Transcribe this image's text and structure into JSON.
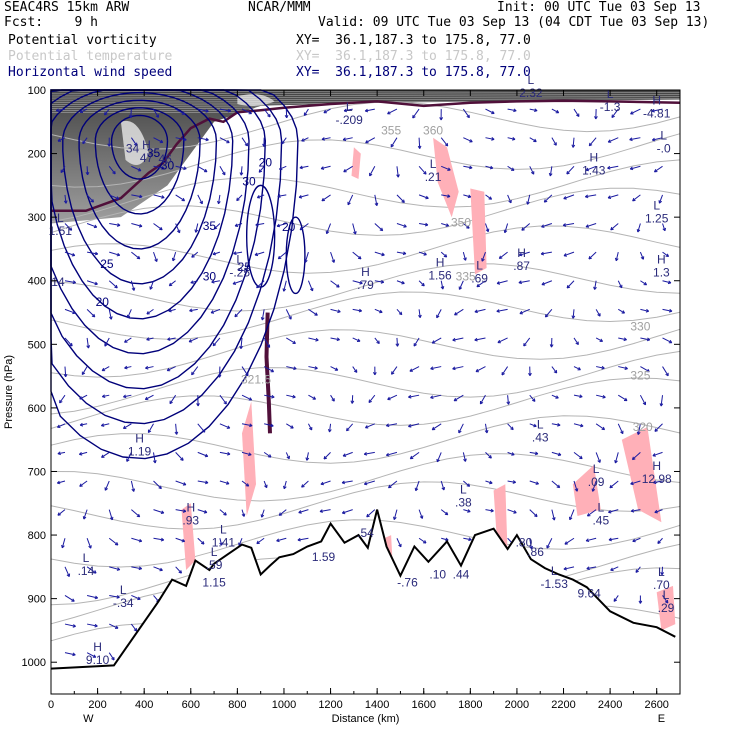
{
  "header": {
    "model": "SEAC4RS 15km ARW",
    "org": "NCAR/MMM",
    "init": "Init: 00 UTC Tue 03 Sep 13",
    "fcst": "Fcst:    9 h",
    "valid": "Valid: 09 UTC Tue 03 Sep 13 (04 CDT Tue 03 Sep 13)",
    "fields": [
      {
        "name": "Potential vorticity",
        "xy": "XY=  36.1,187.3 to 175.8, 77.0",
        "color": "#000000"
      },
      {
        "name": "Potential temperature",
        "xy": "XY=  36.1,187.3 to 175.8, 77.0",
        "color": "#b0b0b0"
      },
      {
        "name": "Horizontal wind speed",
        "xy": "XY=  36.1,187.3 to 175.8, 77.0",
        "color": "#00007a"
      }
    ]
  },
  "chart_data": {
    "type": "cross-section",
    "xlabel": "Distance (km)",
    "ylabel": "Pressure (hPa)",
    "x_ticks": [
      "0",
      "200",
      "400",
      "600",
      "800",
      "1000",
      "1200",
      "1400",
      "1600",
      "1800",
      "2000",
      "2200",
      "2400",
      "2600"
    ],
    "y_ticks": [
      "100",
      "200",
      "300",
      "400",
      "500",
      "600",
      "700",
      "800",
      "900",
      "1000"
    ],
    "xlim": [
      0,
      2700
    ],
    "ylim": [
      1050,
      100
    ],
    "left_end": "W",
    "right_end": "E",
    "colors": {
      "wind_contour": "#00007a",
      "theta_contour": "#b4b4b4",
      "pv_shade": "#ffb0b8",
      "pv_line": "#50103a",
      "terrain": "#000000"
    },
    "terrain": {
      "x": [
        0,
        270,
        460,
        520,
        580,
        620,
        680,
        700,
        760,
        820,
        860,
        900,
        940,
        980,
        1040,
        1100,
        1160,
        1200,
        1260,
        1320,
        1360,
        1400,
        1440,
        1500,
        1560,
        1620,
        1700,
        1760,
        1820,
        1900,
        1960,
        2000,
        2060,
        2120,
        2180,
        2240,
        2300,
        2400,
        2500,
        2600,
        2680
      ],
      "p": [
        1010,
        1005,
        905,
        870,
        880,
        840,
        855,
        845,
        830,
        815,
        820,
        862,
        848,
        835,
        830,
        818,
        810,
        782,
        812,
        800,
        820,
        760,
        818,
        864,
        818,
        842,
        810,
        848,
        800,
        790,
        822,
        800,
        838,
        852,
        862,
        870,
        882,
        920,
        938,
        945,
        960
      ]
    },
    "wind_speed_contours": [
      {
        "value": "20",
        "x": 220,
        "p": 440
      },
      {
        "value": "25",
        "x": 240,
        "p": 380
      },
      {
        "value": "30",
        "x": 680,
        "p": 400
      },
      {
        "value": "35",
        "x": 680,
        "p": 320
      },
      {
        "value": "30",
        "x": 850,
        "p": 250
      },
      {
        "value": "25",
        "x": 830,
        "p": 385
      },
      {
        "value": "20",
        "x": 920,
        "p": 220
      },
      {
        "value": "20",
        "x": 1020,
        "p": 322
      },
      {
        "value": "35",
        "x": 440,
        "p": 205
      },
      {
        "value": "30",
        "x": 500,
        "p": 225
      }
    ],
    "theta_contours": [
      {
        "value": "330",
        "x": 2530,
        "p": 478
      },
      {
        "value": "325",
        "x": 2530,
        "p": 555
      },
      {
        "value": "320",
        "x": 2540,
        "p": 636
      },
      {
        "value": "335",
        "x": 1780,
        "p": 400
      },
      {
        "value": "350",
        "x": 1760,
        "p": 315
      },
      {
        "value": "355",
        "x": 1460,
        "p": 170
      },
      {
        "value": "360",
        "x": 1640,
        "p": 170
      },
      {
        "value": "321.5",
        "x": 880,
        "p": 562
      }
    ],
    "extrema": [
      {
        "kind": "H",
        "value": "47",
        "x": 410,
        "p": 210
      },
      {
        "kind": "",
        "value": "34",
        "x": 350,
        "p": 195
      },
      {
        "kind": "",
        "value": "46",
        "x": 490,
        "p": 212
      },
      {
        "kind": "L",
        "value": "1.51",
        "x": 40,
        "p": 325
      },
      {
        "kind": "",
        "value": "14",
        "x": 30,
        "p": 405
      },
      {
        "kind": "L",
        "value": "-.25",
        "x": 810,
        "p": 390
      },
      {
        "kind": "H",
        "value": "1.19",
        "x": 380,
        "p": 672
      },
      {
        "kind": "H",
        "value": ".93",
        "x": 600,
        "p": 780
      },
      {
        "kind": "L",
        "value": ".14",
        "x": 150,
        "p": 860
      },
      {
        "kind": "L",
        "value": "-.34",
        "x": 310,
        "p": 910
      },
      {
        "kind": "H",
        "value": "9.10",
        "x": 200,
        "p": 1000
      },
      {
        "kind": "L",
        "value": "1.41",
        "x": 740,
        "p": 815
      },
      {
        "kind": "L",
        "value": ".59",
        "x": 700,
        "p": 850
      },
      {
        "kind": "",
        "value": "1.15",
        "x": 700,
        "p": 878
      },
      {
        "kind": "",
        "value": "1.59",
        "x": 1170,
        "p": 838
      },
      {
        "kind": "",
        "value": ".54",
        "x": 1350,
        "p": 800
      },
      {
        "kind": "H",
        "value": ".79",
        "x": 1350,
        "p": 410
      },
      {
        "kind": "H",
        "value": "1.56",
        "x": 1670,
        "p": 395
      },
      {
        "kind": "L",
        "value": ".69",
        "x": 1840,
        "p": 400
      },
      {
        "kind": "H",
        "value": ".87",
        "x": 2020,
        "p": 380
      },
      {
        "kind": "L",
        "value": ".21",
        "x": 1640,
        "p": 240
      },
      {
        "kind": "L",
        "value": "-.209",
        "x": 1280,
        "p": 150
      },
      {
        "kind": "H",
        "value": "1.43",
        "x": 2330,
        "p": 230
      },
      {
        "kind": "L",
        "value": ".43",
        "x": 2100,
        "p": 650
      },
      {
        "kind": "L",
        "value": ".38",
        "x": 1770,
        "p": 752
      },
      {
        "kind": "",
        "value": ".80",
        "x": 2030,
        "p": 815
      },
      {
        "kind": "",
        "value": ".86",
        "x": 2080,
        "p": 830
      },
      {
        "kind": "",
        "value": ".10",
        "x": 1660,
        "p": 865
      },
      {
        "kind": "",
        "value": "-.76",
        "x": 1530,
        "p": 878
      },
      {
        "kind": "",
        "value": ".44",
        "x": 1760,
        "p": 865
      },
      {
        "kind": "L",
        "value": "-1.53",
        "x": 2160,
        "p": 880
      },
      {
        "kind": "L",
        "value": ".09",
        "x": 2340,
        "p": 720
      },
      {
        "kind": "H",
        "value": "12.98",
        "x": 2600,
        "p": 715
      },
      {
        "kind": "L",
        "value": ".45",
        "x": 2360,
        "p": 780
      },
      {
        "kind": "",
        "value": "9.64",
        "x": 2310,
        "p": 895
      },
      {
        "kind": "L",
        "value": ".70",
        "x": 2620,
        "p": 882
      },
      {
        "kind": "L",
        "value": ".29",
        "x": 2640,
        "p": 918
      },
      {
        "kind": "L",
        "value": "2.32",
        "x": 2060,
        "p": 108
      },
      {
        "kind": "H",
        "value": "-4.81",
        "x": 2600,
        "p": 140
      },
      {
        "kind": "L",
        "value": "-1.3",
        "x": 2400,
        "p": 130
      },
      {
        "kind": "L",
        "value": "-.0",
        "x": 2630,
        "p": 195
      },
      {
        "kind": "L",
        "value": "1.25",
        "x": 2600,
        "p": 305
      },
      {
        "kind": "H",
        "value": "1.3",
        "x": 2620,
        "p": 390
      }
    ],
    "pv_shaded_patches": [
      {
        "x": [
          1640,
          1700,
          1750,
          1720,
          1660
        ],
        "p": [
          175,
          190,
          260,
          300,
          245
        ]
      },
      {
        "x": [
          1800,
          1860,
          1870,
          1820
        ],
        "p": [
          255,
          260,
          380,
          390
        ]
      },
      {
        "x": [
          1300,
          1330,
          1320,
          1290
        ],
        "p": [
          190,
          200,
          240,
          235
        ]
      },
      {
        "x": [
          820,
          860,
          880,
          840
        ],
        "p": [
          640,
          590,
          720,
          770
        ]
      },
      {
        "x": [
          560,
          600,
          620,
          580
        ],
        "p": [
          760,
          750,
          840,
          855
        ]
      },
      {
        "x": [
          2240,
          2330,
          2360,
          2260
        ],
        "p": [
          720,
          690,
          760,
          770
        ]
      },
      {
        "x": [
          2450,
          2560,
          2620,
          2520
        ],
        "p": [
          650,
          630,
          780,
          760
        ]
      },
      {
        "x": [
          1400,
          1460,
          1470,
          1420
        ],
        "p": [
          810,
          800,
          870,
          880
        ]
      },
      {
        "x": [
          1900,
          1950,
          1960,
          1920
        ],
        "p": [
          730,
          720,
          830,
          840
        ]
      },
      {
        "x": [
          2600,
          2670,
          2680,
          2620
        ],
        "p": [
          890,
          880,
          940,
          950
        ]
      }
    ]
  }
}
